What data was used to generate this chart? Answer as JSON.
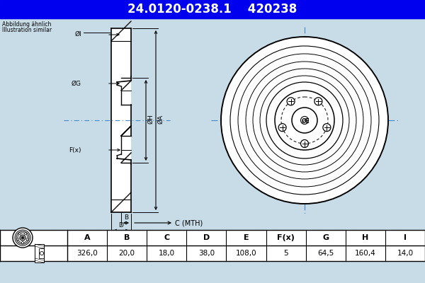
{
  "title_part1": "24.0120-0238.1",
  "title_part2": "420238",
  "title_bg": "#0000ee",
  "title_fg": "#ffffff",
  "abbildung_line1": "Abbildung ähnlich",
  "abbildung_line2": "Illustration similar",
  "table_headers": [
    "A",
    "B",
    "C",
    "D",
    "E",
    "F(x)",
    "G",
    "H",
    "I"
  ],
  "table_values": [
    "326,0",
    "20,0",
    "18,0",
    "38,0",
    "108,0",
    "5",
    "64,5",
    "160,4",
    "14,0"
  ],
  "bg_color": "#c8dce8",
  "line_color": "#000000",
  "dim_color": "#4488cc",
  "hatch_color": "#000000"
}
